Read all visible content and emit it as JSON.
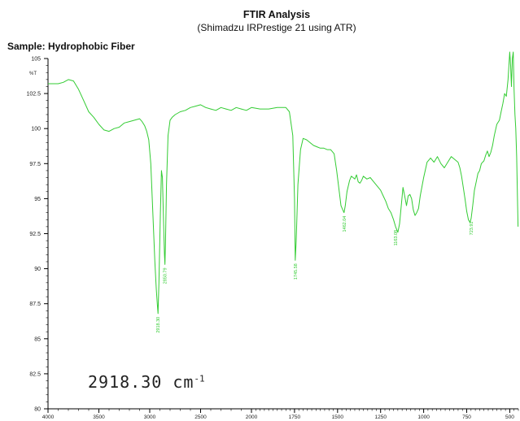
{
  "header": {
    "title": "FTIR Analysis",
    "subtitle": "(Shimadzu IRPrestige 21 using ATR)",
    "sample": "Sample: Hydrophobic Fiber"
  },
  "callout": {
    "value": "2918.30 cm",
    "superscript": "-1"
  },
  "chart_data": {
    "type": "line",
    "title": "FTIR Analysis",
    "subtitle": "(Shimadzu IRPrestige 21 using ATR)",
    "ylabel": "%T",
    "xlabel": "",
    "xlim": [
      4000,
      450
    ],
    "ylim": [
      80,
      105
    ],
    "x_reversed": true,
    "grid": false,
    "color": "#33cc33",
    "xticks": [
      4000,
      3500,
      3000,
      2500,
      2000,
      1750,
      1500,
      1250,
      1000,
      750,
      500
    ],
    "yticks": [
      80,
      82.5,
      85,
      87.5,
      90,
      92.5,
      95,
      97.5,
      100,
      102.5,
      105
    ],
    "ytick_labels": [
      "80",
      "82.5",
      "85",
      "87.5",
      "90",
      "92.5",
      "95",
      "97.5",
      "100",
      "102.5",
      "105"
    ],
    "series": [
      {
        "x": [
          4000,
          3900,
          3850,
          3800,
          3750,
          3700,
          3650,
          3600,
          3550,
          3500,
          3450,
          3400,
          3350,
          3300,
          3250,
          3200,
          3150,
          3100,
          3075,
          3050,
          3030,
          3010,
          2990,
          2970,
          2950,
          2935,
          2925,
          2918.3,
          2910,
          2895,
          2885,
          2875,
          2865,
          2855,
          2850.79,
          2845,
          2835,
          2820,
          2800,
          2780,
          2750,
          2700,
          2650,
          2600,
          2550,
          2500,
          2450,
          2400,
          2350,
          2300,
          2250,
          2200,
          2150,
          2100,
          2050,
          2000,
          1950,
          1900,
          1850,
          1800,
          1780,
          1760,
          1750,
          1745.58,
          1740,
          1730,
          1715,
          1700,
          1680,
          1660,
          1640,
          1620,
          1600,
          1580,
          1560,
          1540,
          1520,
          1505,
          1490,
          1480,
          1470,
          1462.04,
          1455,
          1445,
          1430,
          1420,
          1410,
          1400,
          1390,
          1380,
          1370,
          1360,
          1350,
          1330,
          1310,
          1290,
          1270,
          1250,
          1235,
          1220,
          1205,
          1190,
          1175,
          1163.08,
          1150,
          1140,
          1130,
          1120,
          1110,
          1100,
          1090,
          1080,
          1070,
          1060,
          1050,
          1040,
          1030,
          1020,
          1000,
          980,
          960,
          940,
          920,
          900,
          880,
          860,
          840,
          820,
          800,
          790,
          780,
          770,
          760,
          750,
          740,
          730,
          723.91,
          715,
          705,
          695,
          685,
          675,
          665,
          650,
          640,
          630,
          620,
          610,
          600,
          590,
          575,
          560,
          550,
          540,
          530,
          520,
          510,
          500,
          495,
          490,
          485,
          480,
          475,
          470,
          465,
          460,
          455,
          452
        ],
        "y": [
          103.2,
          103.2,
          103.3,
          103.5,
          103.4,
          102.8,
          102,
          101.2,
          100.8,
          100.3,
          99.9,
          99.8,
          100,
          100.1,
          100.4,
          100.5,
          100.6,
          100.7,
          100.5,
          100.2,
          99.8,
          99.2,
          97.5,
          94,
          90.5,
          88.5,
          87.4,
          86.8,
          89,
          94,
          97,
          96.5,
          93.5,
          91,
          90.3,
          92,
          96,
          99.5,
          100.6,
          100.8,
          101,
          101.2,
          101.3,
          101.5,
          101.6,
          101.7,
          101.5,
          101.4,
          101.3,
          101.5,
          101.4,
          101.3,
          101.5,
          101.4,
          101.3,
          101.5,
          101.4,
          101.4,
          101.5,
          101.5,
          101.2,
          99.5,
          95,
          90.6,
          92,
          96,
          98.5,
          99.3,
          99.2,
          99,
          98.8,
          98.7,
          98.6,
          98.6,
          98.5,
          98.5,
          98.2,
          97,
          95.5,
          94.5,
          94.2,
          94,
          94.5,
          95.5,
          96.3,
          96.6,
          96.5,
          96.4,
          96.7,
          96.2,
          96.1,
          96.3,
          96.6,
          96.4,
          96.5,
          96.2,
          95.9,
          95.6,
          95.2,
          94.8,
          94.3,
          94,
          93.5,
          93,
          92.6,
          93.2,
          94.5,
          95.8,
          95.2,
          94.5,
          95.2,
          95.3,
          95,
          94.2,
          93.8,
          94,
          94.3,
          95.2,
          96.5,
          97.6,
          97.9,
          97.6,
          98,
          97.5,
          97.2,
          97.6,
          98,
          97.8,
          97.6,
          97.2,
          96.6,
          95.8,
          95,
          94.1,
          93.5,
          93.3,
          93.6,
          94.5,
          95.6,
          96.2,
          96.8,
          97,
          97.5,
          97.7,
          98.1,
          98.4,
          98,
          98.3,
          98.8,
          99.5,
          100.3,
          100.6,
          101.2,
          101.8,
          102.5,
          102.3,
          103.5,
          105.6,
          104.5,
          103,
          105,
          106,
          102.8,
          101,
          100,
          98,
          95,
          93
        ]
      }
    ],
    "annotations": [
      {
        "x": 2918.3,
        "label": "2918.30"
      },
      {
        "x": 2850.79,
        "label": "2850.79"
      },
      {
        "x": 1745.58,
        "label": "1745.58"
      },
      {
        "x": 1462.04,
        "label": "1462.04"
      },
      {
        "x": 1163.08,
        "label": "1163.08"
      },
      {
        "x": 723.91,
        "label": "723.91"
      }
    ]
  }
}
